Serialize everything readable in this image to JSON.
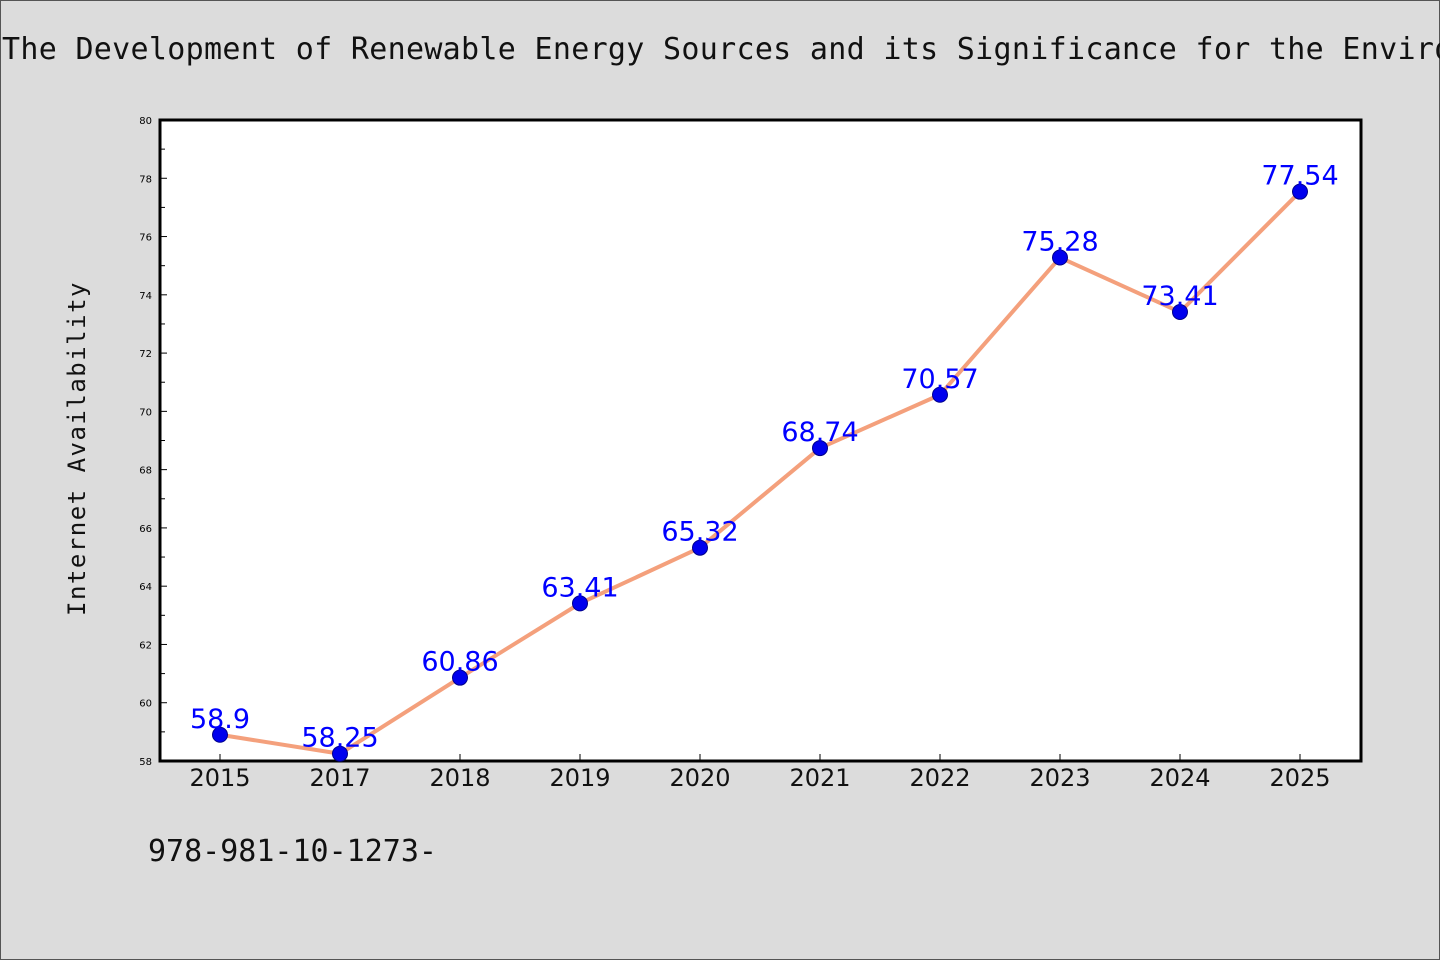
{
  "chart_data": {
    "type": "line",
    "title": "The Development of Renewable Energy Sources and its Significance for the Environ",
    "ylabel": "Internet Availability",
    "xlabel": "",
    "categories": [
      "2015",
      "2017",
      "2018",
      "2019",
      "2020",
      "2021",
      "2022",
      "2023",
      "2024",
      "2025"
    ],
    "series": [
      {
        "values": [
          58.9,
          58.25,
          60.86,
          63.41,
          65.32,
          68.74,
          70.57,
          75.28,
          73.41,
          77.54
        ]
      }
    ],
    "data_labels": [
      "58.9",
      "58.25",
      "60.86",
      "63.41",
      "65.32",
      "68.74",
      "70.57",
      "75.28",
      "73.41",
      "77.54"
    ],
    "ylim": [
      58,
      80
    ],
    "yticks": [
      "58",
      "60",
      "62",
      "64",
      "66",
      "68",
      "70",
      "72",
      "74",
      "76",
      "78",
      "80"
    ],
    "grid": false,
    "colors": {
      "line": "#f4a07c",
      "marker": "#0000ee",
      "label": "#0000ff",
      "plot_bg": "#ffffff",
      "page_bg": "#dcdcdc"
    }
  },
  "footer": {
    "isbn_text": "978-981-10-1273-"
  }
}
